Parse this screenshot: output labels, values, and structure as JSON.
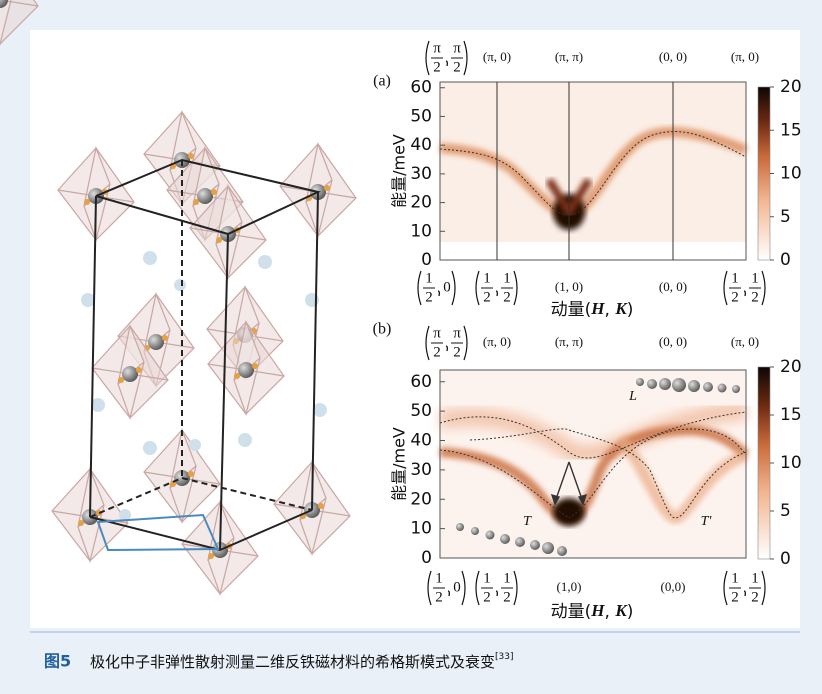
{
  "figure": {
    "panels": [
      {
        "label": "(a)",
        "y_label": "能量/meV",
        "ylim": [
          0,
          62
        ],
        "yticks": [
          0,
          10,
          20,
          30,
          40,
          50,
          60
        ],
        "colorbar": {
          "range": [
            0,
            20
          ],
          "ticks": [
            0,
            5,
            10,
            15,
            20
          ]
        },
        "top_labels": [
          {
            "x": {
              "num": "π",
              "den": "2"
            },
            "y": {
              "num": "π",
              "den": "2"
            }
          },
          "(π, 0)",
          "(π, π)",
          "(0, 0)",
          "(π, 0)"
        ],
        "bottom_labels": [
          {
            "x": {
              "num": "1",
              "den": "2"
            },
            "y": "0"
          },
          {
            "x": {
              "num": "1",
              "den": "2"
            },
            "y": {
              "num": "1",
              "den": "2"
            }
          },
          "(1, 0)",
          "(0, 0)",
          {
            "x": {
              "num": "1",
              "den": "2"
            },
            "y": {
              "num": "1",
              "den": "2"
            }
          }
        ],
        "x_label": [
          "动量(",
          "H",
          ", ",
          "K",
          ")"
        ]
      },
      {
        "label": "(b)",
        "y_label": "能量/meV",
        "ylim": [
          0,
          64
        ],
        "yticks": [
          0,
          10,
          20,
          30,
          40,
          50,
          60
        ],
        "colorbar": {
          "range": [
            0,
            20
          ],
          "ticks": [
            0,
            5,
            10,
            15,
            20
          ]
        },
        "top_labels": [
          {
            "x": {
              "num": "π",
              "den": "2"
            },
            "y": {
              "num": "π",
              "den": "2"
            }
          },
          "(π, 0)",
          "(π, π)",
          "(0, 0)",
          "(π, 0)"
        ],
        "bottom_labels": [
          {
            "x": {
              "num": "1",
              "den": "2"
            },
            "y": "0"
          },
          {
            "x": {
              "num": "1",
              "den": "2"
            },
            "y": {
              "num": "1",
              "den": "2"
            }
          },
          "(1,0)",
          "(0,0)",
          {
            "x": {
              "num": "1",
              "den": "2"
            },
            "y": {
              "num": "1",
              "den": "2"
            }
          }
        ],
        "x_label": [
          "动量(",
          "H",
          ", ",
          "K",
          ")"
        ],
        "annotations": [
          "L",
          "T",
          "T'"
        ]
      }
    ],
    "caption": {
      "number": "图5",
      "text": "极化中子非弹性散射测量二维反铁磁材料的希格斯模式及衰变",
      "ref": "[33]"
    }
  }
}
